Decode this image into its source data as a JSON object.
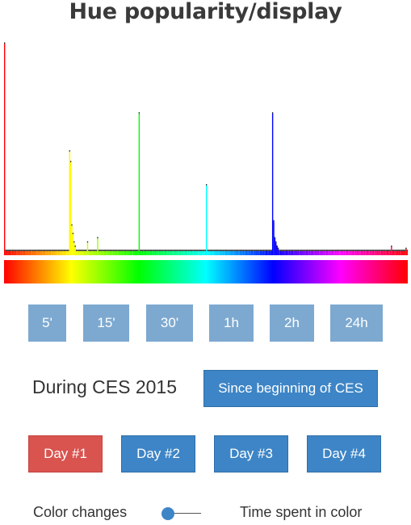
{
  "title": "Hue popularity/display",
  "chart_data": {
    "type": "bar",
    "xlabel": "",
    "ylabel": "",
    "hue_range": [
      0,
      360
    ],
    "baseline": 2,
    "spikes": [
      {
        "hue": 0,
        "value": 100
      },
      {
        "hue": 58,
        "value": 49
      },
      {
        "hue": 59,
        "value": 44
      },
      {
        "hue": 60,
        "value": 14
      },
      {
        "hue": 61,
        "value": 10
      },
      {
        "hue": 62,
        "value": 6
      },
      {
        "hue": 63,
        "value": 4
      },
      {
        "hue": 74,
        "value": 6
      },
      {
        "hue": 83,
        "value": 8
      },
      {
        "hue": 120,
        "value": 67
      },
      {
        "hue": 180,
        "value": 33
      },
      {
        "hue": 239,
        "value": 67
      },
      {
        "hue": 240,
        "value": 16
      },
      {
        "hue": 241,
        "value": 8
      },
      {
        "hue": 242,
        "value": 6
      },
      {
        "hue": 243,
        "value": 4
      },
      {
        "hue": 244,
        "value": 3
      },
      {
        "hue": 345,
        "value": 4
      },
      {
        "hue": 358,
        "value": 3
      }
    ]
  },
  "time_buttons": [
    "5'",
    "15'",
    "30'",
    "1h",
    "2h",
    "24h"
  ],
  "period_label": "During CES 2015",
  "since_button": "Since beginning of CES",
  "day_buttons": [
    "Day #1",
    "Day #2",
    "Day #3",
    "Day #4"
  ],
  "active_day": 0,
  "toggle": {
    "left_label": "Color changes",
    "right_label": "Time spent in color",
    "accent": "#3d85c6"
  },
  "colors": {
    "time_button": "#7da9d0",
    "button": "#3d85c6",
    "active_button": "#d9534f"
  }
}
